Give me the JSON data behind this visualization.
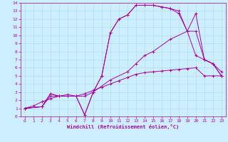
{
  "bg_color": "#cceeff",
  "line_color": "#aa00aa",
  "grid_color": "#aadddd",
  "xlim": [
    -0.5,
    23.5
  ],
  "ylim": [
    0,
    14
  ],
  "xticks": [
    0,
    1,
    2,
    3,
    4,
    5,
    6,
    7,
    8,
    9,
    10,
    11,
    12,
    13,
    14,
    15,
    16,
    17,
    18,
    19,
    20,
    21,
    22,
    23
  ],
  "yticks": [
    0,
    1,
    2,
    3,
    4,
    5,
    6,
    7,
    8,
    9,
    10,
    11,
    12,
    13,
    14
  ],
  "xlabel": "Windchill (Refroidissement éolien,°C)",
  "series": [
    {
      "x": [
        0,
        1,
        2,
        3,
        4,
        5,
        6,
        7,
        8,
        9,
        10,
        11,
        12,
        13,
        14,
        15,
        16,
        17,
        18,
        19,
        20,
        21,
        22,
        23
      ],
      "y": [
        1,
        1.3,
        1.8,
        2.2,
        2.5,
        2.7,
        2.5,
        2.8,
        3.2,
        3.6,
        4.0,
        4.4,
        4.8,
        5.2,
        5.4,
        5.5,
        5.6,
        5.7,
        5.8,
        5.9,
        6.0,
        5.0,
        5.0,
        5.0
      ]
    },
    {
      "x": [
        0,
        2,
        3,
        4,
        5,
        6,
        7,
        8,
        9,
        10,
        11,
        12,
        13,
        14,
        15,
        16,
        17,
        18,
        19,
        20,
        21,
        22,
        23
      ],
      "y": [
        1,
        1.2,
        2.8,
        2.5,
        2.5,
        2.5,
        0.2,
        3.0,
        5.0,
        10.3,
        12.0,
        12.5,
        13.7,
        13.7,
        13.7,
        13.5,
        13.3,
        13.0,
        10.5,
        12.7,
        7.0,
        6.5,
        5.0
      ]
    },
    {
      "x": [
        0,
        2,
        3,
        4,
        5,
        6,
        7,
        8,
        9,
        10,
        11,
        12,
        13,
        14,
        15,
        16,
        17,
        18,
        19,
        20,
        21,
        22,
        23
      ],
      "y": [
        1,
        1.2,
        2.8,
        2.5,
        2.5,
        2.5,
        0.2,
        3.0,
        5.0,
        10.3,
        12.0,
        12.5,
        13.7,
        13.7,
        13.7,
        13.5,
        13.3,
        12.7,
        10.5,
        10.5,
        7.0,
        6.5,
        5.0
      ]
    },
    {
      "x": [
        0,
        2,
        3,
        4,
        5,
        6,
        7,
        8,
        10,
        12,
        13,
        14,
        15,
        17,
        19,
        20,
        21,
        22,
        23
      ],
      "y": [
        1,
        1.2,
        2.5,
        2.5,
        2.5,
        2.5,
        2.5,
        3.0,
        4.5,
        5.5,
        6.5,
        7.5,
        8.0,
        9.5,
        10.5,
        7.5,
        7.0,
        6.5,
        5.5
      ]
    }
  ]
}
